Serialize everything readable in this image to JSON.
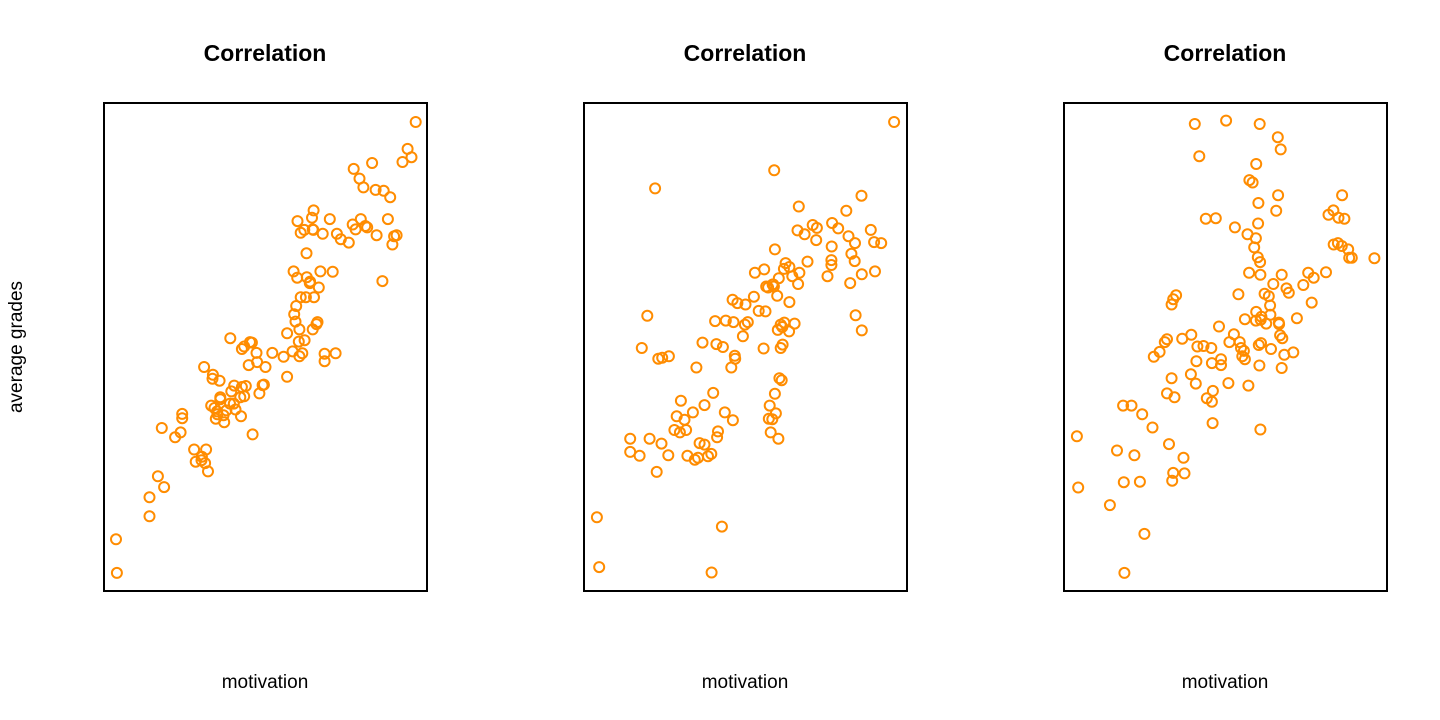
{
  "figure": {
    "ylabel": "average grades"
  },
  "style": {
    "point_color": "#FF8C00"
  },
  "chart_data": [
    {
      "type": "scatter",
      "title": "Correlation",
      "xlabel": "motivation",
      "ylabel": "average grades",
      "xlim": [
        0,
        1
      ],
      "ylim": [
        0,
        1
      ],
      "grid": false,
      "axis_ticks": false,
      "x": [
        0.04,
        0.037,
        0.141,
        0.141,
        0.186,
        0.167,
        0.22,
        0.237,
        0.179,
        0.242,
        0.242,
        0.279,
        0.313,
        0.303,
        0.322,
        0.284,
        0.302,
        0.37,
        0.35,
        0.332,
        0.379,
        0.36,
        0.424,
        0.402,
        0.394,
        0.403,
        0.407,
        0.422,
        0.427,
        0.46,
        0.434,
        0.439,
        0.481,
        0.491,
        0.495,
        0.458,
        0.472,
        0.452,
        0.31,
        0.336,
        0.358,
        0.337,
        0.36,
        0.391,
        0.342,
        0.346,
        0.372,
        0.39,
        0.316,
        0.351,
        0.427,
        0.434,
        0.448,
        0.474,
        0.5,
        0.521,
        0.556,
        0.584,
        0.605,
        0.567,
        0.614,
        0.621,
        0.593,
        0.609,
        0.638,
        0.658,
        0.661,
        0.646,
        0.717,
        0.683,
        0.683,
        0.637,
        0.67,
        0.605,
        0.603,
        0.567,
        0.595,
        0.598,
        0.589,
        0.625,
        0.628,
        0.65,
        0.627,
        0.648,
        0.587,
        0.708,
        0.733,
        0.665,
        0.677,
        0.77,
        0.795,
        0.809,
        0.791,
        0.83,
        0.841,
        0.879,
        0.906,
        0.893,
        0.862,
        0.898,
        0.952,
        0.886,
        0.844,
        0.803,
        0.773,
        0.649,
        0.699,
        0.646,
        0.599,
        0.609,
        0.62,
        0.644,
        0.721,
        0.758,
        0.815,
        0.779,
        0.866,
        0.924,
        0.94,
        0.965
      ],
      "y": [
        0.037,
        0.106,
        0.153,
        0.192,
        0.213,
        0.235,
        0.315,
        0.325,
        0.334,
        0.354,
        0.363,
        0.29,
        0.262,
        0.275,
        0.245,
        0.265,
        0.268,
        0.36,
        0.368,
        0.38,
        0.37,
        0.393,
        0.358,
        0.384,
        0.409,
        0.421,
        0.372,
        0.397,
        0.418,
        0.321,
        0.399,
        0.42,
        0.405,
        0.422,
        0.423,
        0.509,
        0.488,
        0.51,
        0.459,
        0.435,
        0.431,
        0.443,
        0.397,
        0.518,
        0.375,
        0.353,
        0.346,
        0.384,
        0.29,
        0.362,
        0.496,
        0.501,
        0.463,
        0.469,
        0.459,
        0.488,
        0.48,
        0.491,
        0.481,
        0.439,
        0.487,
        0.514,
        0.552,
        0.602,
        0.634,
        0.547,
        0.551,
        0.536,
        0.487,
        0.471,
        0.486,
        0.631,
        0.655,
        0.536,
        0.511,
        0.528,
        0.584,
        0.642,
        0.567,
        0.602,
        0.643,
        0.602,
        0.692,
        0.74,
        0.655,
        0.654,
        0.721,
        0.622,
        0.732,
        0.751,
        0.762,
        0.748,
        0.845,
        0.877,
        0.822,
        0.762,
        0.729,
        0.71,
        0.635,
        0.727,
        0.889,
        0.807,
        0.729,
        0.827,
        0.865,
        0.78,
        0.762,
        0.741,
        0.758,
        0.734,
        0.74,
        0.765,
        0.732,
        0.714,
        0.745,
        0.741,
        0.82,
        0.879,
        0.906,
        0.961
      ]
    },
    {
      "type": "scatter",
      "title": "Correlation",
      "xlabel": "motivation",
      "ylabel": "average grades",
      "xlim": [
        0,
        1
      ],
      "ylim": [
        0,
        1
      ],
      "grid": false,
      "axis_ticks": false,
      "x": [
        0.04,
        0.047,
        0.395,
        0.427,
        0.172,
        0.143,
        0.225,
        0.203,
        0.143,
        0.24,
        0.261,
        0.32,
        0.343,
        0.353,
        0.384,
        0.394,
        0.373,
        0.358,
        0.316,
        0.297,
        0.28,
        0.311,
        0.337,
        0.412,
        0.373,
        0.436,
        0.461,
        0.415,
        0.3,
        0.287,
        0.23,
        0.179,
        0.242,
        0.196,
        0.263,
        0.348,
        0.4,
        0.43,
        0.468,
        0.498,
        0.507,
        0.467,
        0.456,
        0.41,
        0.367,
        0.406,
        0.439,
        0.463,
        0.475,
        0.541,
        0.562,
        0.584,
        0.588,
        0.586,
        0.57,
        0.558,
        0.529,
        0.591,
        0.624,
        0.636,
        0.645,
        0.667,
        0.708,
        0.768,
        0.787,
        0.766,
        0.754,
        0.86,
        0.901,
        0.92,
        0.898,
        0.888,
        0.838,
        0.828,
        0.767,
        0.719,
        0.692,
        0.663,
        0.636,
        0.609,
        0.635,
        0.615,
        0.609,
        0.605,
        0.591,
        0.594,
        0.583,
        0.578,
        0.602,
        0.572,
        0.556,
        0.6,
        0.614,
        0.62,
        0.603,
        0.598,
        0.652,
        0.612,
        0.575,
        0.492,
        0.5,
        0.46,
        0.526,
        0.564,
        0.619,
        0.661,
        0.683,
        0.721,
        0.766,
        0.824,
        0.841,
        0.86,
        0.812,
        0.819,
        0.839,
        0.859,
        0.665,
        0.589,
        0.22,
        0.96
      ],
      "y": [
        0.151,
        0.049,
        0.038,
        0.132,
        0.277,
        0.312,
        0.244,
        0.312,
        0.285,
        0.302,
        0.278,
        0.277,
        0.269,
        0.273,
        0.276,
        0.281,
        0.3,
        0.303,
        0.33,
        0.325,
        0.33,
        0.351,
        0.366,
        0.315,
        0.381,
        0.366,
        0.35,
        0.327,
        0.39,
        0.358,
        0.476,
        0.498,
        0.478,
        0.564,
        0.481,
        0.458,
        0.406,
        0.5,
        0.476,
        0.546,
        0.551,
        0.482,
        0.458,
        0.506,
        0.509,
        0.553,
        0.554,
        0.551,
        0.59,
        0.574,
        0.573,
        0.628,
        0.624,
        0.628,
        0.622,
        0.659,
        0.652,
        0.7,
        0.672,
        0.664,
        0.645,
        0.652,
        0.75,
        0.754,
        0.743,
        0.668,
        0.645,
        0.649,
        0.655,
        0.713,
        0.715,
        0.74,
        0.676,
        0.691,
        0.706,
        0.719,
        0.675,
        0.629,
        0.592,
        0.546,
        0.532,
        0.505,
        0.498,
        0.436,
        0.404,
        0.364,
        0.352,
        0.325,
        0.312,
        0.353,
        0.497,
        0.535,
        0.541,
        0.55,
        0.641,
        0.605,
        0.548,
        0.432,
        0.38,
        0.522,
        0.587,
        0.597,
        0.603,
        0.624,
        0.66,
        0.739,
        0.731,
        0.744,
        0.678,
        0.631,
        0.565,
        0.534,
        0.779,
        0.727,
        0.713,
        0.81,
        0.788,
        0.862,
        0.825,
        0.961
      ]
    },
    {
      "type": "scatter",
      "title": "Correlation",
      "xlabel": "motivation",
      "ylabel": "average grades",
      "xlim": [
        0,
        1
      ],
      "ylim": [
        0,
        1
      ],
      "grid": false,
      "axis_ticks": false,
      "x": [
        0.04,
        0.044,
        0.185,
        0.142,
        0.235,
        0.338,
        0.335,
        0.249,
        0.37,
        0.373,
        0.187,
        0.333,
        0.46,
        0.486,
        0.552,
        0.608,
        0.571,
        0.605,
        0.509,
        0.413,
        0.408,
        0.461,
        0.458,
        0.319,
        0.366,
        0.319,
        0.333,
        0.41,
        0.442,
        0.548,
        0.526,
        0.486,
        0.48,
        0.456,
        0.512,
        0.54,
        0.56,
        0.594,
        0.611,
        0.665,
        0.641,
        0.669,
        0.674,
        0.682,
        0.666,
        0.638,
        0.634,
        0.639,
        0.721,
        0.756,
        0.811,
        0.835,
        0.86,
        0.883,
        0.868,
        0.848,
        0.88,
        0.891,
        0.961,
        0.85,
        0.834,
        0.861,
        0.819,
        0.773,
        0.689,
        0.674,
        0.621,
        0.6,
        0.573,
        0.595,
        0.61,
        0.609,
        0.607,
        0.602,
        0.657,
        0.663,
        0.671,
        0.662,
        0.606,
        0.502,
        0.405,
        0.419,
        0.439,
        0.47,
        0.529,
        0.568,
        0.589,
        0.601,
        0.584,
        0.595,
        0.574,
        0.594,
        0.608,
        0.648,
        0.676,
        0.696,
        0.767,
        0.741,
        0.71,
        0.56,
        0.557,
        0.432,
        0.394,
        0.347,
        0.338,
        0.312,
        0.296,
        0.278,
        0.242,
        0.209,
        0.183,
        0.164,
        0.218,
        0.325,
        0.274,
        0.342,
        0.393,
        0.458,
        0.544,
        0.603,
        0.626
      ],
      "y": [
        0.317,
        0.212,
        0.223,
        0.176,
        0.224,
        0.242,
        0.226,
        0.117,
        0.273,
        0.241,
        0.037,
        0.436,
        0.344,
        0.463,
        0.481,
        0.331,
        0.421,
        0.462,
        0.426,
        0.501,
        0.425,
        0.41,
        0.467,
        0.405,
        0.517,
        0.516,
        0.587,
        0.471,
        0.395,
        0.498,
        0.526,
        0.475,
        0.542,
        0.498,
        0.51,
        0.608,
        0.557,
        0.554,
        0.562,
        0.55,
        0.496,
        0.524,
        0.457,
        0.484,
        0.547,
        0.585,
        0.604,
        0.566,
        0.559,
        0.652,
        0.653,
        0.71,
        0.707,
        0.683,
        0.763,
        0.713,
        0.7,
        0.683,
        0.682,
        0.765,
        0.78,
        0.811,
        0.771,
        0.642,
        0.62,
        0.648,
        0.609,
        0.684,
        0.652,
        0.572,
        0.508,
        0.556,
        0.674,
        0.795,
        0.779,
        0.811,
        0.905,
        0.93,
        0.957,
        0.964,
        0.957,
        0.891,
        0.763,
        0.764,
        0.745,
        0.731,
        0.704,
        0.753,
        0.837,
        0.875,
        0.842,
        0.723,
        0.648,
        0.629,
        0.518,
        0.611,
        0.591,
        0.627,
        0.489,
        0.475,
        0.492,
        0.502,
        0.525,
        0.606,
        0.598,
        0.51,
        0.49,
        0.48,
        0.362,
        0.38,
        0.38,
        0.288,
        0.278,
        0.301,
        0.335,
        0.397,
        0.444,
        0.388,
        0.51,
        0.504,
        0.548
      ]
    }
  ]
}
